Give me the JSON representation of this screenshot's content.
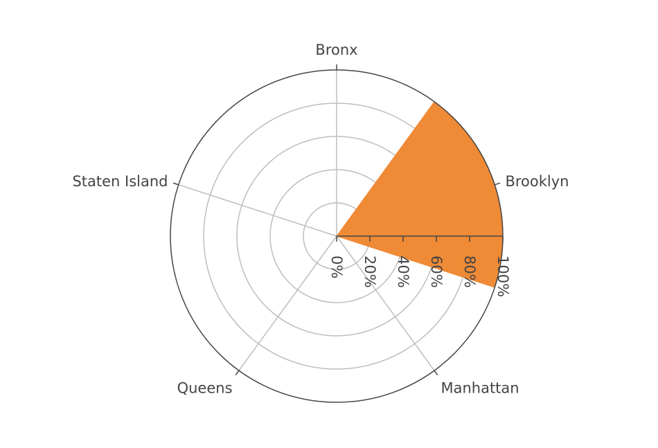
{
  "chart_data": {
    "type": "barpolar",
    "categories": [
      "Bronx",
      "Brooklyn",
      "Manhattan",
      "Queens",
      "Staten Island"
    ],
    "series": [
      {
        "values": [
          0,
          100,
          0,
          0,
          0
        ],
        "color": "#ef8a36"
      }
    ],
    "radial_axis": {
      "range": [
        0,
        100
      ],
      "ticks": [
        0,
        20,
        40,
        60,
        80,
        100
      ],
      "tick_labels": [
        "0%",
        "20%",
        "40%",
        "60%",
        "80%",
        "100%"
      ],
      "angle_deg": 0,
      "tick_label_orientation": "rotated-along-axis"
    },
    "angular_axis": {
      "direction": "clockwise",
      "rotation_deg": 90
    },
    "grid": true,
    "legend": "none"
  }
}
